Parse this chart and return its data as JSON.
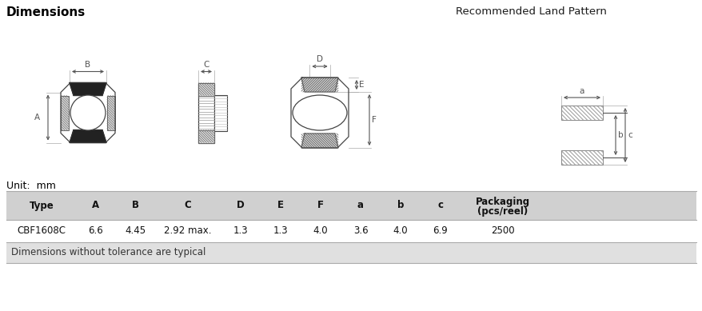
{
  "title_dimensions": "Dimensions",
  "title_land_pattern": "Recommended Land Pattern",
  "unit_text": "Unit:  mm",
  "table_headers": [
    "Type",
    "A",
    "B",
    "C",
    "D",
    "E",
    "F",
    "a",
    "b",
    "c",
    "Packaging\n(pcs/reel)"
  ],
  "table_data": [
    [
      "CBF1608C",
      "6.6",
      "4.45",
      "2.92 max.",
      "1.3",
      "1.3",
      "4.0",
      "3.6",
      "4.0",
      "6.9",
      "2500"
    ]
  ],
  "footer_text": "Dimensions without tolerance are typical",
  "bg_color": "#ffffff",
  "header_bg": "#d0d0d0",
  "row_bg": "#ffffff",
  "footer_bg": "#e0e0e0",
  "border_color": "#aaaaaa",
  "line_color": "#444444",
  "dim_color": "#555555",
  "hatch_dark": "#333333",
  "hatch_light": "#888888"
}
